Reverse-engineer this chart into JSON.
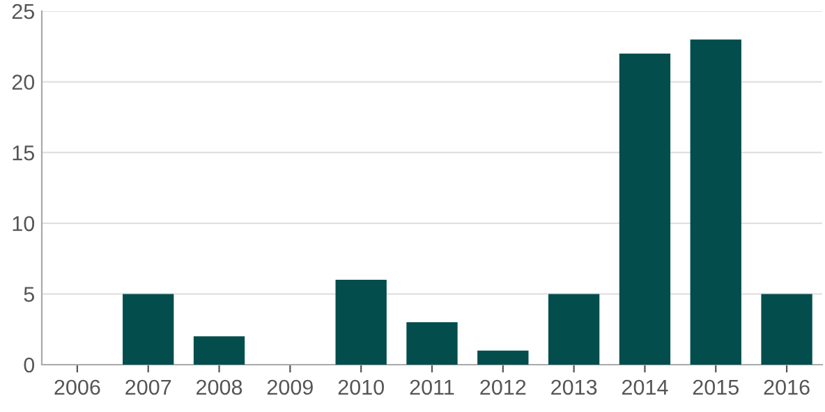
{
  "chart_data": {
    "type": "bar",
    "categories": [
      "2006",
      "2007",
      "2008",
      "2009",
      "2010",
      "2011",
      "2012",
      "2013",
      "2014",
      "2015",
      "2016"
    ],
    "series": [
      {
        "color": "#034d4d",
        "values": [
          0,
          5,
          2,
          0,
          6,
          3,
          1,
          5,
          22,
          23,
          5
        ]
      }
    ],
    "ylim": [
      0,
      25
    ],
    "yticks": [
      0,
      5,
      10,
      15,
      20,
      25
    ],
    "grid": "y"
  }
}
